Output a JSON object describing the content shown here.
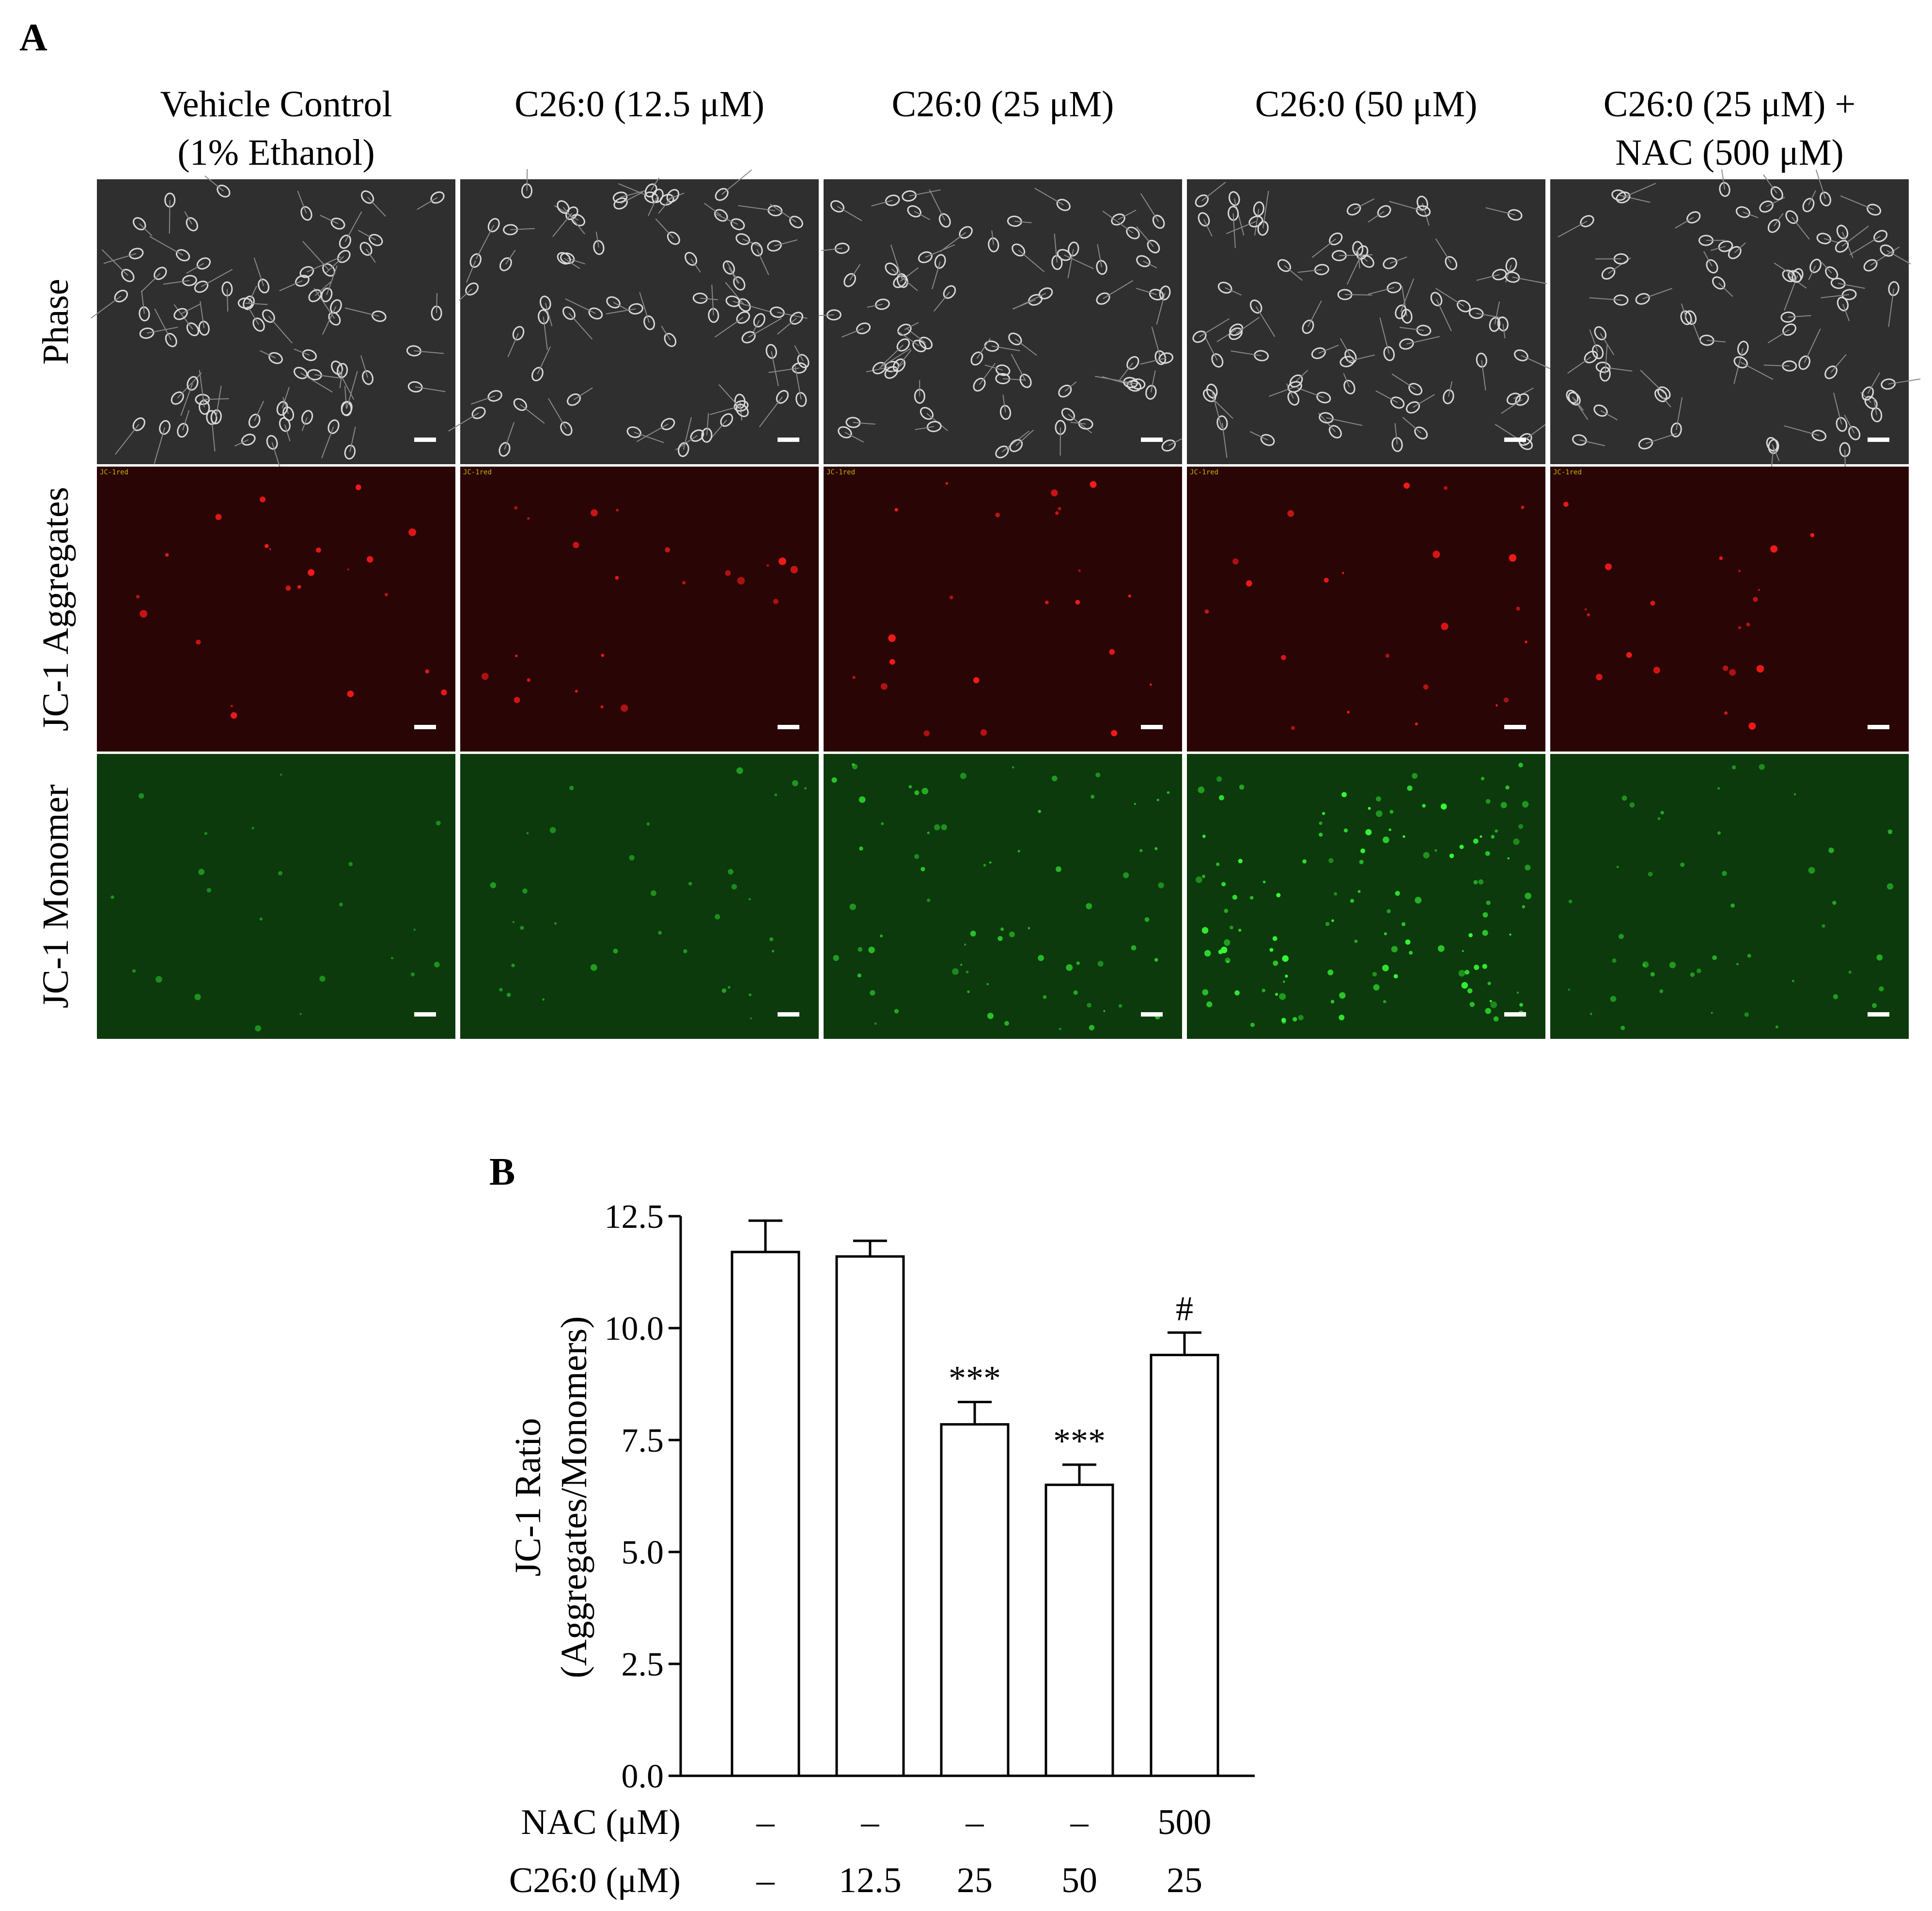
{
  "panel_a": {
    "label": "A",
    "columns": [
      {
        "lines": [
          "Vehicle Control",
          "(1% Ethanol)"
        ]
      },
      {
        "lines": [
          "C26:0 (12.5 μM)"
        ]
      },
      {
        "lines": [
          "C26:0 (25 μM)"
        ]
      },
      {
        "lines": [
          "C26:0 (50 μM)"
        ]
      },
      {
        "lines": [
          "C26:0 (25 μM) +",
          "NAC (500 μM)"
        ]
      }
    ],
    "rows": [
      {
        "label": "Phase",
        "type": "phase",
        "background": "#2f2f2f"
      },
      {
        "label": "JC-1 Aggregates",
        "type": "red",
        "background": "#2a0505"
      },
      {
        "label": "JC-1 Monomer",
        "type": "green",
        "background": "#0c3a0c"
      }
    ],
    "red_overlay_text": "JC-1red",
    "green_levels": [
      0.1,
      0.2,
      0.5,
      1.0,
      0.3
    ]
  },
  "panel_b": {
    "label": "B",
    "chart_data": {
      "type": "bar",
      "ylabel_lines": [
        "JC-1 Ratio",
        "(Aggregates/Monomers)"
      ],
      "ylim": [
        0,
        12.5
      ],
      "yticks": [
        "0.0",
        "2.5",
        "5.0",
        "7.5",
        "10.0",
        "12.5"
      ],
      "values": [
        11.7,
        11.6,
        7.85,
        6.5,
        9.4
      ],
      "errors": [
        0.7,
        0.35,
        0.5,
        0.45,
        0.5
      ],
      "annotations": [
        "",
        "",
        "***",
        "***",
        "#"
      ],
      "row_labels": [
        "NAC (μM)",
        "C26:0 (μM)"
      ],
      "rows": [
        [
          "–",
          "–",
          "–",
          "–",
          "500"
        ],
        [
          "–",
          "12.5",
          "25",
          "50",
          "25"
        ]
      ],
      "bar_color": "#ffffff",
      "edge_color": "#000000"
    }
  }
}
